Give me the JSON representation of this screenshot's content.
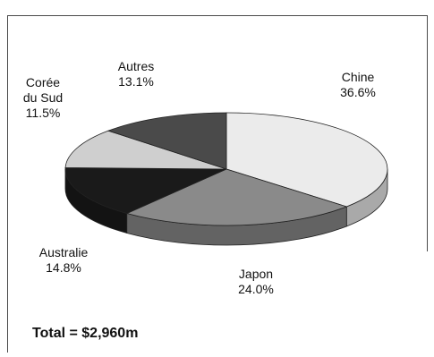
{
  "chart_data": {
    "type": "pie",
    "title": "",
    "categories": [
      "Chine",
      "Japon",
      "Australie",
      "Corée du Sud",
      "Autres"
    ],
    "values": [
      36.6,
      24.0,
      14.8,
      11.5,
      13.1
    ],
    "labels": [
      {
        "name": "Chine",
        "value": "36.6%"
      },
      {
        "name": "Japon",
        "value": "24.0%"
      },
      {
        "name": "Australie",
        "value": "14.8%"
      },
      {
        "name_line1": "Corée",
        "name_line2": "du Sud",
        "value": "11.5%"
      },
      {
        "name": "Autres",
        "value": "13.1%"
      }
    ],
    "colors": [
      "#ebebeb",
      "#8a8a8a",
      "#1a1a1a",
      "#cfcfcf",
      "#4a4a4a"
    ],
    "style": "3d",
    "legend": "none"
  },
  "footer": {
    "total_text": "Total = $2,960m"
  }
}
